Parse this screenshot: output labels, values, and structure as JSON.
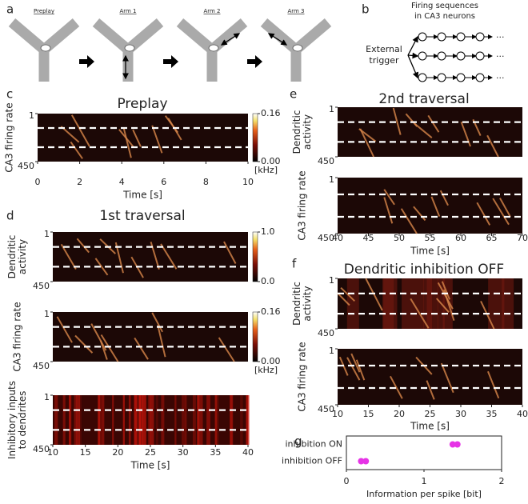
{
  "maze_panel": {
    "letter": "a",
    "labels": [
      "Preplay",
      "Arm 1",
      "Arm 2",
      "Arm 3"
    ]
  },
  "sequence_panel": {
    "letter": "b",
    "title_lines": [
      "Firing sequences",
      "in CA3 neurons"
    ],
    "trigger_lines": [
      "External",
      "trigger"
    ],
    "ellipsis": "..."
  },
  "chart_data": [
    {
      "type": "heatmap",
      "panel": "c",
      "title": "Preplay",
      "xlabel": "Time [s]",
      "xlim": [
        0,
        10
      ],
      "xticks": [
        0,
        2,
        4,
        6,
        8,
        10
      ],
      "subplots": [
        {
          "ylabel": [
            "CA3 firing rate"
          ],
          "ylim": [
            1,
            450
          ],
          "yticks": [
            1,
            450
          ],
          "colorbar": {
            "ticks": [
              {
                "value": 0,
                "label": "0.00"
              },
              0.16
            ],
            "label": "[kHz]"
          }
        }
      ]
    },
    {
      "type": "heatmap",
      "panel": "d",
      "title": "1st traversal",
      "xlabel": "Time [s]",
      "xlim": [
        10,
        40
      ],
      "xticks": [
        10,
        15,
        20,
        25,
        30,
        35,
        40
      ],
      "subplots": [
        {
          "ylabel": [
            "Dendritic",
            "activity"
          ],
          "ylim": [
            1,
            450
          ],
          "yticks": [
            1,
            450
          ],
          "colorbar": {
            "ticks": [
              {
                "value": 0,
                "label": "0.0"
              },
              {
                "value": 1,
                "label": "1.0"
              }
            ]
          }
        },
        {
          "ylabel": [
            "CA3 firing rate"
          ],
          "ylim": [
            1,
            450
          ],
          "yticks": [
            1,
            450
          ],
          "colorbar": {
            "ticks": [
              {
                "value": 0,
                "label": "0.00"
              },
              0.16
            ],
            "label": "[kHz]"
          }
        },
        {
          "ylabel": [
            "Inhibitory inputs",
            "to dendrites"
          ],
          "ylim": [
            1,
            450
          ],
          "yticks": [
            1,
            450
          ],
          "style": "inhibitory"
        }
      ]
    },
    {
      "type": "heatmap",
      "panel": "e",
      "title": "2nd traversal",
      "xlabel": "Time [s]",
      "xlim": [
        40,
        70
      ],
      "xticks": [
        40,
        45,
        50,
        55,
        60,
        65,
        70
      ],
      "subplots": [
        {
          "ylabel": [
            "Dendritic",
            "activity"
          ],
          "ylim": [
            1,
            450
          ],
          "yticks": [
            1,
            450
          ]
        },
        {
          "ylabel": [
            "CA3 firing rate"
          ],
          "ylim": [
            1,
            450
          ],
          "yticks": [
            1,
            450
          ]
        }
      ]
    },
    {
      "type": "heatmap",
      "panel": "f",
      "title": "Dendritic inhibition OFF",
      "xlabel": "Time [s]",
      "xlim": [
        10,
        40
      ],
      "xticks": [
        10,
        15,
        20,
        25,
        30,
        35,
        40
      ],
      "subplots": [
        {
          "ylabel": [
            "Dendritic",
            "activity"
          ],
          "ylim": [
            1,
            450
          ],
          "yticks": [
            1,
            450
          ],
          "style": "off"
        },
        {
          "ylabel": [
            "CA3 firing rate"
          ],
          "ylim": [
            1,
            450
          ],
          "yticks": [
            1,
            450
          ]
        }
      ]
    },
    {
      "type": "scatter",
      "panel": "g",
      "xlabel": "Information per spike [bit]",
      "xlim": [
        0,
        2
      ],
      "xticks": [
        0,
        1,
        2
      ],
      "categories": [
        "inhibition ON",
        "inhibition OFF"
      ],
      "values": [
        [
          1.37,
          1.43
        ],
        [
          0.19,
          0.25
        ]
      ],
      "color": "#e633e6"
    }
  ]
}
